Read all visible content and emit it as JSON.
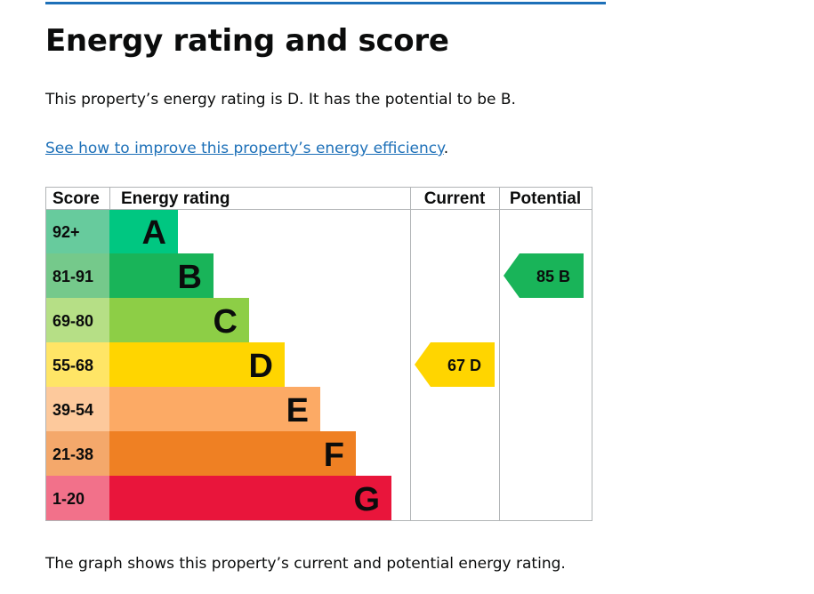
{
  "heading": "Energy rating and score",
  "summary": "This property’s energy rating is D. It has the potential to be B.",
  "improve_link": "See how to improve this property’s energy efficiency",
  "improve_link_suffix": ".",
  "caption": "The graph shows this property’s current and potential energy rating.",
  "colors": {
    "accent_rule": "#1d70b8",
    "link": "#1d70b8",
    "grid": "#b1b4b6"
  },
  "chart_data": {
    "type": "bar",
    "columns": {
      "score": "Score",
      "rating": "Energy rating",
      "current": "Current",
      "potential": "Potential"
    },
    "bands": [
      {
        "letter": "A",
        "range": "92+",
        "color": "#00c781",
        "score_bg": "#67cb9d"
      },
      {
        "letter": "B",
        "range": "81-91",
        "color": "#19b459",
        "score_bg": "#75c98b"
      },
      {
        "letter": "C",
        "range": "69-80",
        "color": "#8dce46",
        "score_bg": "#b6df86"
      },
      {
        "letter": "D",
        "range": "55-68",
        "color": "#ffd500",
        "score_bg": "#ffe566"
      },
      {
        "letter": "E",
        "range": "39-54",
        "color": "#fcaa65",
        "score_bg": "#fdc99c"
      },
      {
        "letter": "F",
        "range": "21-38",
        "color": "#ef8023",
        "score_bg": "#f4a86b"
      },
      {
        "letter": "G",
        "range": "1-20",
        "color": "#e9153b",
        "score_bg": "#f2718a"
      }
    ],
    "current": {
      "score": 67,
      "band": "D",
      "label": "67 D",
      "color": "#ffd500"
    },
    "potential": {
      "score": 85,
      "band": "B",
      "label": "85 B",
      "color": "#19b459"
    }
  }
}
